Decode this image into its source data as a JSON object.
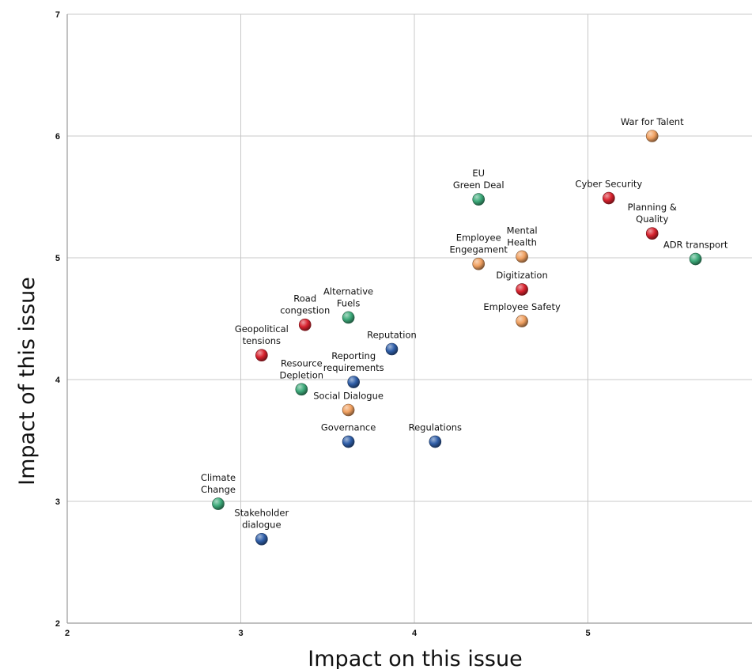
{
  "chart_data": {
    "type": "scatter",
    "xlabel": "Impact on this issue",
    "ylabel": "Impact of this issue",
    "xlim": [
      2,
      5.95
    ],
    "ylim": [
      2,
      7
    ],
    "x_ticks": [
      "2",
      "3",
      "4",
      "5"
    ],
    "y_ticks": [
      "2",
      "3",
      "4",
      "5",
      "6",
      "7"
    ],
    "grid": true,
    "legend": "none",
    "category_colors": {
      "green": "#3daa7a",
      "red": "#d8222e",
      "orange": "#f0a060",
      "blue": "#2f5ea8"
    },
    "points": [
      {
        "label": [
          "War for Talent"
        ],
        "x": 5.37,
        "y": 6.0,
        "color": "orange",
        "label_pos": "above"
      },
      {
        "label": [
          "EU",
          "Green Deal"
        ],
        "x": 4.37,
        "y": 5.48,
        "color": "green",
        "label_pos": "above"
      },
      {
        "label": [
          "Cyber Security"
        ],
        "x": 5.12,
        "y": 5.49,
        "color": "red",
        "label_pos": "above"
      },
      {
        "label": [
          "Planning &",
          "Quality"
        ],
        "x": 5.37,
        "y": 5.2,
        "color": "red",
        "label_pos": "above"
      },
      {
        "label": [
          "ADR transport"
        ],
        "x": 5.62,
        "y": 4.99,
        "color": "green",
        "label_pos": "above"
      },
      {
        "label": [
          "Employee",
          "Engegament"
        ],
        "x": 4.37,
        "y": 4.95,
        "color": "orange",
        "label_pos": "above"
      },
      {
        "label": [
          "Mental",
          "Health"
        ],
        "x": 4.62,
        "y": 5.01,
        "color": "orange",
        "label_pos": "above"
      },
      {
        "label": [
          "Digitization"
        ],
        "x": 4.62,
        "y": 4.74,
        "color": "red",
        "label_pos": "above"
      },
      {
        "label": [
          "Employee Safety"
        ],
        "x": 4.62,
        "y": 4.48,
        "color": "orange",
        "label_pos": "above"
      },
      {
        "label": [
          "Alternative",
          "Fuels"
        ],
        "x": 3.62,
        "y": 4.51,
        "color": "green",
        "label_pos": "above"
      },
      {
        "label": [
          "Road",
          "congestion"
        ],
        "x": 3.37,
        "y": 4.45,
        "color": "red",
        "label_pos": "above"
      },
      {
        "label": [
          "Geopolitical",
          "tensions"
        ],
        "x": 3.12,
        "y": 4.2,
        "color": "red",
        "label_pos": "above"
      },
      {
        "label": [
          "Reputation"
        ],
        "x": 3.87,
        "y": 4.25,
        "color": "blue",
        "label_pos": "above"
      },
      {
        "label": [
          "Reporting",
          "requirements"
        ],
        "x": 3.65,
        "y": 3.98,
        "color": "blue",
        "label_pos": "above"
      },
      {
        "label": [
          "Resource",
          "Depletion"
        ],
        "x": 3.35,
        "y": 3.92,
        "color": "green",
        "label_pos": "above"
      },
      {
        "label": [
          "Social Dialogue"
        ],
        "x": 3.62,
        "y": 3.75,
        "color": "orange",
        "label_pos": "above"
      },
      {
        "label": [
          "Governance"
        ],
        "x": 3.62,
        "y": 3.49,
        "color": "blue",
        "label_pos": "above"
      },
      {
        "label": [
          "Regulations"
        ],
        "x": 4.12,
        "y": 3.49,
        "color": "blue",
        "label_pos": "above"
      },
      {
        "label": [
          "Climate",
          "Change"
        ],
        "x": 2.87,
        "y": 2.98,
        "color": "green",
        "label_pos": "above"
      },
      {
        "label": [
          "Stakeholder",
          "dialogue"
        ],
        "x": 3.12,
        "y": 2.69,
        "color": "blue",
        "label_pos": "above"
      }
    ]
  }
}
